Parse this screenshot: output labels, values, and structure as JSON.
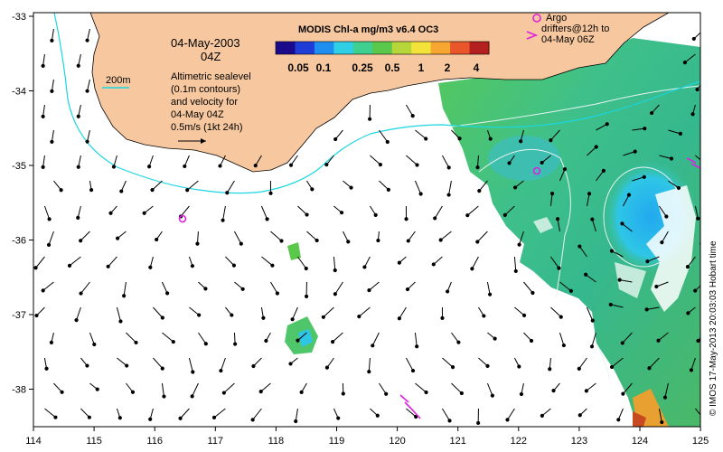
{
  "annotation": {
    "date": "04-May-2003",
    "time": "04Z",
    "scale_label": "200m",
    "sealevel_lines": [
      "Altimetric sealevel",
      "(0.1m contours)",
      "and velocity for",
      "04-May 04Z",
      "0.5m/s (1kt 24h)"
    ]
  },
  "colorbar": {
    "title": "MODIS Chl-a mg/m3 v6.4 OC3",
    "ticks": [
      "0.05",
      "0.1",
      "0.25",
      "0.5",
      "1",
      "2",
      "4"
    ],
    "colors": [
      "#1a0a8c",
      "#1f3cd6",
      "#1e8ef0",
      "#2fd0e6",
      "#3fcf8f",
      "#5ac84a",
      "#b6d63a",
      "#f3e23a",
      "#f6a631",
      "#e8562a",
      "#b3201f"
    ]
  },
  "argo": {
    "lines": [
      "Argo",
      "drifters@12h to",
      "04-May 06Z"
    ]
  },
  "credit": "© IMOS 17-May-2013 20:03:03 Hobart time",
  "axes": {
    "x_ticks": [
      "114",
      "115",
      "116",
      "117",
      "118",
      "119",
      "120",
      "121",
      "122",
      "123",
      "124",
      "125"
    ],
    "y_ticks": [
      "-33",
      "-34",
      "-35",
      "-36",
      "-37",
      "-38"
    ]
  },
  "colors": {
    "land": "#f7c89f",
    "isobath": "#19d6e0",
    "argo": "#e020e0",
    "contour": "#e8f4f4"
  }
}
